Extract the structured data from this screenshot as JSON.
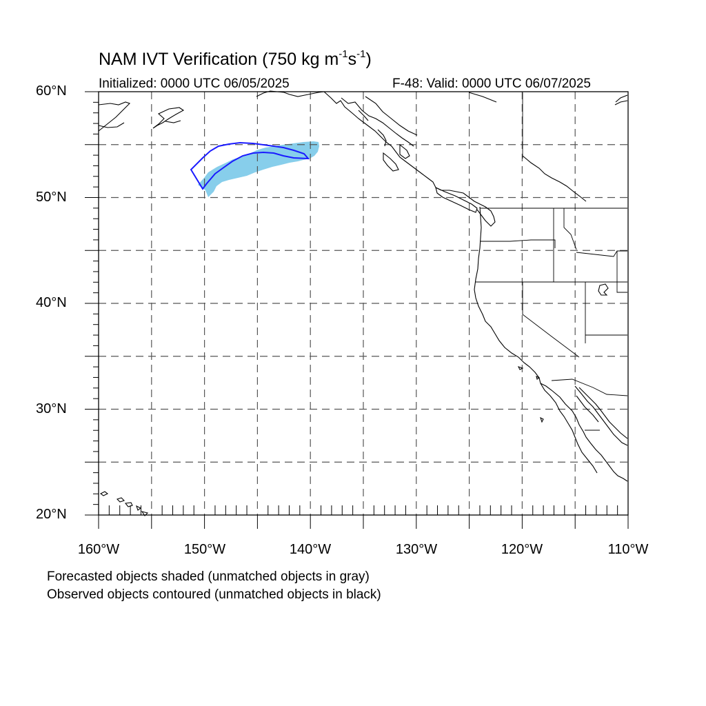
{
  "title": {
    "text_main": "NAM IVT Verification (750 kg m",
    "exp1": "-1",
    "text_mid": "s",
    "exp2": "-1",
    "text_end": ")"
  },
  "subtitle_left": "Initialized: 0000 UTC 06/05/2025",
  "subtitle_right": "F-48: Valid: 0000 UTC 06/07/2025",
  "lat_labels": [
    "60°N",
    "50°N",
    "40°N",
    "30°N",
    "20°N"
  ],
  "lon_labels": [
    "160°W",
    "150°W",
    "140°W",
    "130°W",
    "120°W",
    "110°W"
  ],
  "caption_forecast": "Forecasted objects shaded (unmatched objects in gray)",
  "caption_observed": "Observed objects contoured (unmatched objects in black)",
  "map_extent": {
    "lon": [
      -160,
      -110
    ],
    "lat": [
      20,
      60
    ]
  },
  "colors": {
    "forecast_fill": "#87ceeb",
    "observed_contour": "#1a1aff",
    "coastline": "#000000",
    "grid": "#555555"
  }
}
